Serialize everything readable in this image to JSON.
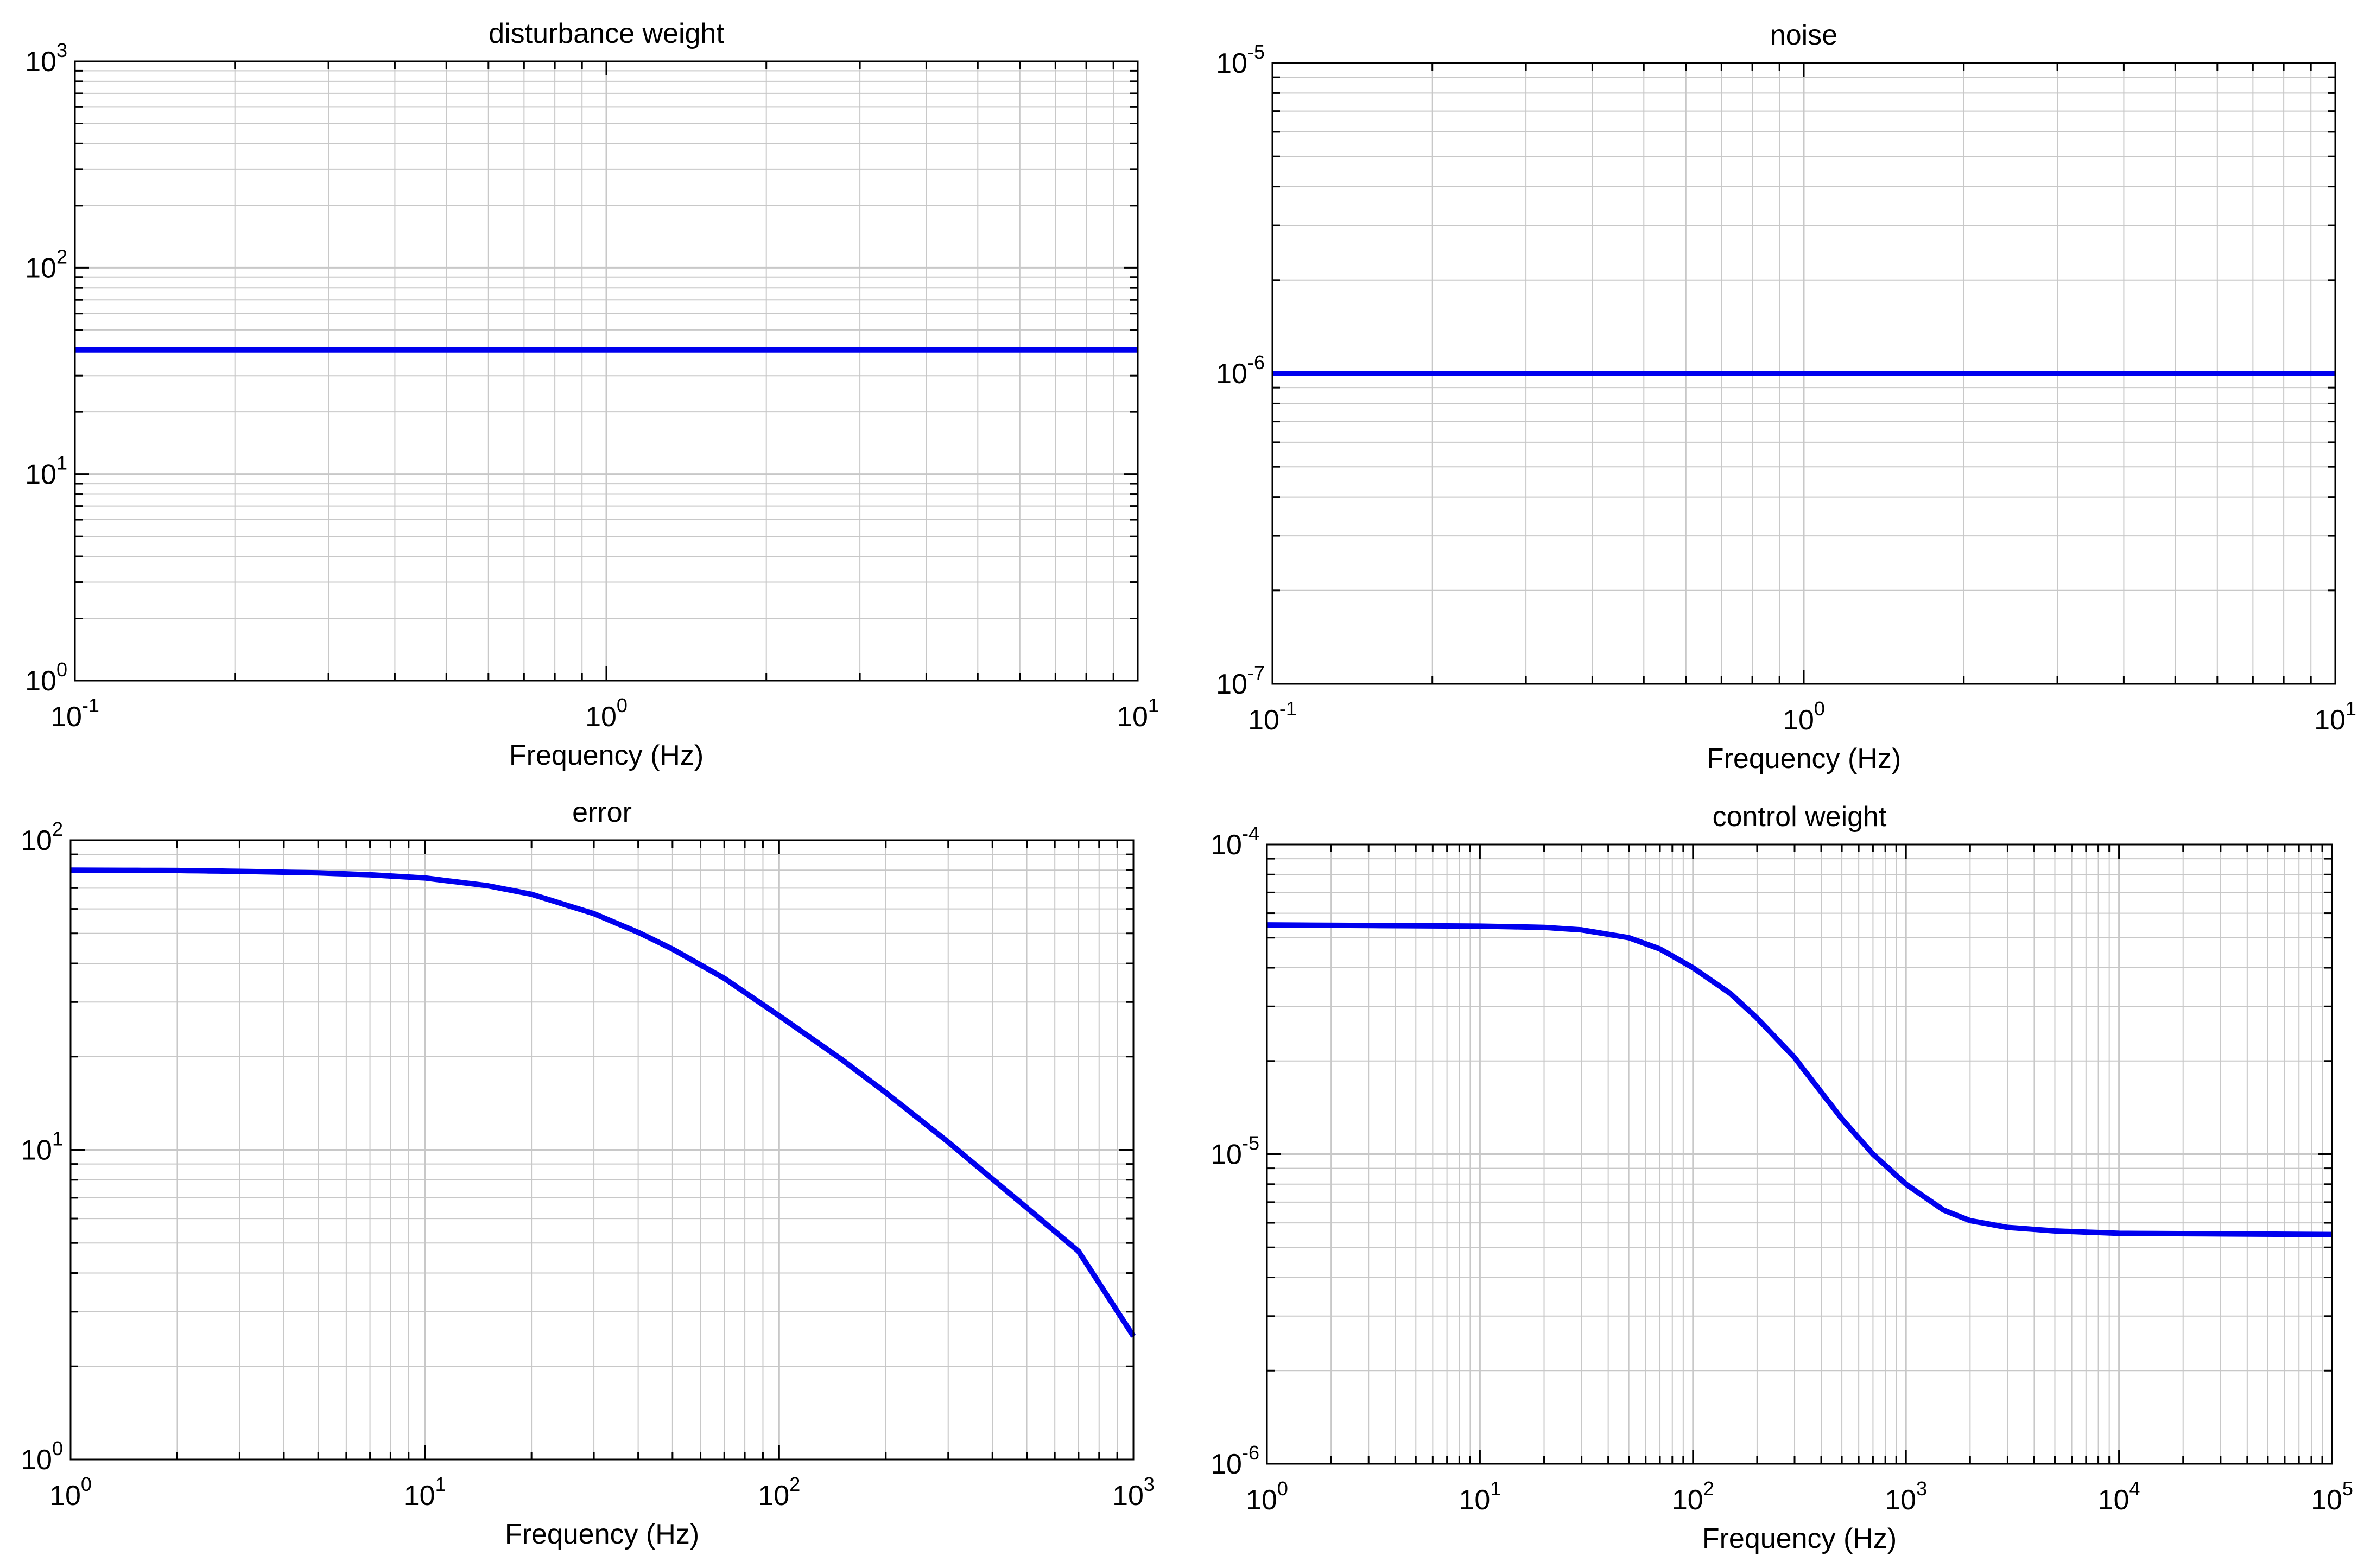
{
  "figure": {
    "background": "#ffffff",
    "line_color": "#0000ee",
    "grid_color": "#c8c8c8",
    "axis_color": "#000000"
  },
  "chart_data": [
    {
      "type": "line",
      "title": "disturbance weight",
      "xlabel": "Frequency (Hz)",
      "ylabel": "",
      "xscale": "log",
      "yscale": "log",
      "xlim": [
        0.1,
        10
      ],
      "ylim": [
        1,
        1000
      ],
      "grid": true,
      "xticks": [
        {
          "base": "10",
          "exp": "-1"
        },
        {
          "base": "10",
          "exp": "0"
        },
        {
          "base": "10",
          "exp": "1"
        }
      ],
      "yticks": [
        {
          "base": "10",
          "exp": "0"
        },
        {
          "base": "10",
          "exp": "1"
        },
        {
          "base": "10",
          "exp": "2"
        },
        {
          "base": "10",
          "exp": "3"
        }
      ],
      "series": [
        {
          "name": "disturbance weight",
          "x": [
            0.1,
            10
          ],
          "y": [
            40,
            40
          ]
        }
      ]
    },
    {
      "type": "line",
      "title": "noise",
      "xlabel": "Frequency (Hz)",
      "ylabel": "",
      "xscale": "log",
      "yscale": "log",
      "xlim": [
        0.1,
        10
      ],
      "ylim": [
        1e-07,
        1e-05
      ],
      "grid": true,
      "xticks": [
        {
          "base": "10",
          "exp": "-1"
        },
        {
          "base": "10",
          "exp": "0"
        },
        {
          "base": "10",
          "exp": "1"
        }
      ],
      "yticks": [
        {
          "base": "10",
          "exp": "-7"
        },
        {
          "base": "10",
          "exp": "-6"
        },
        {
          "base": "10",
          "exp": "-5"
        }
      ],
      "series": [
        {
          "name": "noise",
          "x": [
            0.1,
            10
          ],
          "y": [
            1e-06,
            1e-06
          ]
        }
      ]
    },
    {
      "type": "line",
      "title": "error",
      "xlabel": "Frequency (Hz)",
      "ylabel": "",
      "xscale": "log",
      "yscale": "log",
      "xlim": [
        1,
        1000
      ],
      "ylim": [
        1,
        100
      ],
      "grid": true,
      "xticks": [
        {
          "base": "10",
          "exp": "0"
        },
        {
          "base": "10",
          "exp": "1"
        },
        {
          "base": "10",
          "exp": "2"
        },
        {
          "base": "10",
          "exp": "3"
        }
      ],
      "yticks": [
        {
          "base": "10",
          "exp": "0"
        },
        {
          "base": "10",
          "exp": "1"
        },
        {
          "base": "10",
          "exp": "2"
        }
      ],
      "series": [
        {
          "name": "error",
          "x": [
            1,
            2,
            3,
            5,
            7,
            10,
            15,
            20,
            30,
            40,
            50,
            70,
            100,
            150,
            200,
            300,
            500,
            700,
            1000
          ],
          "y": [
            80,
            79.8,
            79.3,
            78.4,
            77.3,
            75.5,
            71.3,
            66.9,
            57.9,
            50.4,
            44.5,
            35.8,
            27.1,
            19.6,
            15.3,
            10.6,
            6.5,
            4.7,
            2.5
          ]
        }
      ]
    },
    {
      "type": "line",
      "title": "control weight",
      "xlabel": "Frequency (Hz)",
      "ylabel": "",
      "xscale": "log",
      "yscale": "log",
      "xlim": [
        1,
        100000
      ],
      "ylim": [
        1e-06,
        0.0001
      ],
      "grid": true,
      "xticks": [
        {
          "base": "10",
          "exp": "0"
        },
        {
          "base": "10",
          "exp": "1"
        },
        {
          "base": "10",
          "exp": "2"
        },
        {
          "base": "10",
          "exp": "3"
        },
        {
          "base": "10",
          "exp": "4"
        },
        {
          "base": "10",
          "exp": "5"
        }
      ],
      "yticks": [
        {
          "base": "10",
          "exp": "-6"
        },
        {
          "base": "10",
          "exp": "-5"
        },
        {
          "base": "10",
          "exp": "-4"
        }
      ],
      "series": [
        {
          "name": "control weight",
          "x": [
            1,
            10,
            20,
            30,
            50,
            70,
            100,
            150,
            200,
            300,
            500,
            700,
            1000,
            1500,
            2000,
            3000,
            5000,
            10000,
            100000
          ],
          "y": [
            5.5e-05,
            5.45e-05,
            5.4e-05,
            5.3e-05,
            5e-05,
            4.6e-05,
            4e-05,
            3.3e-05,
            2.75e-05,
            2.05e-05,
            1.3e-05,
            1e-05,
            8e-06,
            6.6e-06,
            6.1e-06,
            5.8e-06,
            5.65e-06,
            5.55e-06,
            5.5e-06
          ]
        }
      ]
    }
  ]
}
